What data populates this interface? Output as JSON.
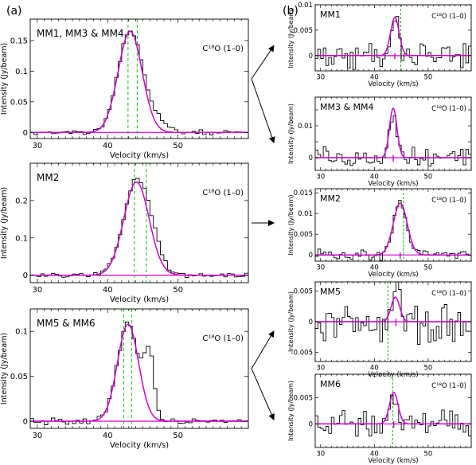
{
  "panel_labels": {
    "left": "(a)",
    "right": "(b)"
  },
  "colors": {
    "observed": "#000000",
    "fit": "#d000d0",
    "vlsr_marker": "#d000d0",
    "component_line": "#00c800"
  },
  "chart_data": [
    {
      "id": "a1",
      "type": "line",
      "column": "a",
      "region_label": "MM1, MM3 & MM4",
      "species_label": "C¹⁸O (1–0)",
      "xlabel": "Velocity (km/s)",
      "ylabel": "Intensity (Jy/beam)",
      "xlim": [
        29,
        60
      ],
      "ylim": [
        -0.01,
        0.185
      ],
      "xticks": [
        30,
        40,
        50
      ],
      "yticks": [
        0,
        0.05,
        0.1,
        0.15
      ],
      "xtick_labels": [
        "30",
        "40",
        "50"
      ],
      "ytick_labels": [
        "0",
        "0.05",
        "0.1",
        "0.15"
      ],
      "center": 43.2,
      "width": 1.7,
      "peak": 0.165,
      "noise": 0.003,
      "extra": [
        [
          46.6,
          1.6,
          0.02
        ]
      ],
      "vlines": [
        42.9,
        44.2
      ],
      "vlsr_marker": 43.8,
      "series": [
        {
          "role": "observed",
          "style": "histogram"
        },
        {
          "role": "gaussian-fit",
          "style": "smooth"
        }
      ]
    },
    {
      "id": "a2",
      "type": "line",
      "column": "a",
      "region_label": "MM2",
      "species_label": "C¹⁸O (1–0)",
      "xlabel": "Velocity (km/s)",
      "ylabel": "Intensity (Jy/beam)",
      "xlim": [
        29,
        60
      ],
      "ylim": [
        -0.02,
        0.3
      ],
      "xticks": [
        30,
        40,
        50
      ],
      "yticks": [
        0,
        0.1,
        0.2
      ],
      "xtick_labels": [
        "30",
        "40",
        "50"
      ],
      "ytick_labels": [
        "0",
        "0.1",
        "0.2"
      ],
      "center": 44.1,
      "width": 1.8,
      "peak": 0.25,
      "noise": 0.005,
      "extra": [
        [
          46.5,
          1.4,
          0.04
        ]
      ],
      "vlines": [
        43.8,
        45.5
      ],
      "vlsr_marker": 44.1,
      "series": [
        {
          "role": "observed",
          "style": "histogram"
        },
        {
          "role": "gaussian-fit",
          "style": "smooth"
        }
      ]
    },
    {
      "id": "a3",
      "type": "line",
      "column": "a",
      "region_label": "MM5 & MM6",
      "species_label": "C¹⁸O (1–0)",
      "xlabel": "Velocity (km/s)",
      "ylabel": "Intensity (Jy/beam)",
      "xlim": [
        29,
        60
      ],
      "ylim": [
        -0.008,
        0.125
      ],
      "xticks": [
        30,
        40,
        50
      ],
      "yticks": [
        0,
        0.05,
        0.1
      ],
      "xtick_labels": [
        "30",
        "40",
        "50"
      ],
      "ytick_labels": [
        "0",
        "0.05",
        "0.1"
      ],
      "center": 42.9,
      "width": 1.5,
      "peak": 0.108,
      "noise": 0.003,
      "extra": [
        [
          45.9,
          0.7,
          0.07
        ]
      ],
      "vlines": [
        42.3,
        43.4
      ],
      "vlsr_marker": 42.9,
      "series": [
        {
          "role": "observed",
          "style": "histogram"
        },
        {
          "role": "gaussian-fit",
          "style": "smooth"
        }
      ]
    },
    {
      "id": "b1",
      "type": "line",
      "column": "b",
      "region_label": "MM1",
      "species_label": "C¹⁸O (1–0)",
      "xlabel": "Velocity (km/s)",
      "ylabel": "Intensity (Jy/beam)",
      "xlim": [
        29,
        58
      ],
      "ylim": [
        -0.003,
        0.01
      ],
      "xticks": [
        30,
        40,
        50
      ],
      "yticks": [
        0,
        0.005,
        0.01
      ],
      "xtick_labels": [
        "30",
        "40",
        "50"
      ],
      "ytick_labels": [
        "0",
        "0.005",
        "0.01"
      ],
      "center": 43.8,
      "width": 0.8,
      "peak": 0.0075,
      "noise": 0.0022,
      "extra": [],
      "vlines": [
        44.9
      ],
      "vlsr_marker": 43.8,
      "series": [
        {
          "role": "observed",
          "style": "histogram"
        },
        {
          "role": "gaussian-fit",
          "style": "smooth"
        }
      ]
    },
    {
      "id": "b2",
      "type": "line",
      "column": "b",
      "region_label": "MM3 & MM4",
      "species_label": "C¹⁸O (1–0)",
      "xlabel": "Velocity (km/s)",
      "ylabel": "Intensity (Jy/beam)",
      "xlim": [
        29,
        58
      ],
      "ylim": [
        -0.004,
        0.019
      ],
      "xticks": [
        30,
        40,
        50
      ],
      "yticks": [
        0,
        0.005,
        0.01,
        0.015
      ],
      "xtick_labels": [
        "30",
        "40",
        "50"
      ],
      "ytick_labels": [
        "0",
        "",
        "0.01",
        ""
      ],
      "center": 43.5,
      "width": 0.7,
      "peak": 0.0155,
      "noise": 0.0028,
      "extra": [],
      "vlines": [],
      "vlsr_marker": 43.5,
      "series": [
        {
          "role": "observed",
          "style": "histogram"
        },
        {
          "role": "gaussian-fit",
          "style": "smooth"
        }
      ]
    },
    {
      "id": "b3",
      "type": "line",
      "column": "b",
      "region_label": "MM2",
      "species_label": "C¹⁸O (1–0)",
      "xlabel": "Velocity (km/s)",
      "ylabel": "Intensity (Jy/beam)",
      "xlim": [
        29,
        58
      ],
      "ylim": [
        -0.0015,
        0.016
      ],
      "xticks": [
        30,
        40,
        50
      ],
      "yticks": [
        0,
        0.005,
        0.01,
        0.015
      ],
      "xtick_labels": [
        "30",
        "40",
        "50"
      ],
      "ytick_labels": [
        "0",
        "0.005",
        "0.01",
        "0.015"
      ],
      "center": 44.8,
      "width": 1.3,
      "peak": 0.0125,
      "noise": 0.0011,
      "extra": [],
      "vlines": [
        45.4
      ],
      "vlsr_marker": 44.8,
      "series": [
        {
          "role": "observed",
          "style": "histogram"
        },
        {
          "role": "gaussian-fit",
          "style": "smooth"
        }
      ]
    },
    {
      "id": "b4",
      "type": "line",
      "column": "b",
      "region_label": "MM5",
      "species_label": "C¹⁸O (1–0)",
      "xlabel": "Velocity (km/s)",
      "ylabel": "Intensity (Jy/beam)",
      "xlim": [
        29,
        58
      ],
      "ylim": [
        -0.0065,
        0.0065
      ],
      "xticks": [
        30,
        40,
        50
      ],
      "yticks": [
        -0.005,
        0,
        0.005
      ],
      "xtick_labels": [
        "30",
        "40",
        "50"
      ],
      "ytick_labels": [
        "-0.005",
        "0",
        "0.005"
      ],
      "center": 43.9,
      "width": 0.8,
      "peak": 0.004,
      "noise": 0.0028,
      "extra": [],
      "vlines": [
        42.5
      ],
      "vlsr_marker": 44.0,
      "series": [
        {
          "role": "observed",
          "style": "histogram"
        },
        {
          "role": "gaussian-fit",
          "style": "smooth"
        }
      ]
    },
    {
      "id": "b5",
      "type": "line",
      "column": "b",
      "region_label": "MM6",
      "species_label": "C¹⁸O (1–0)",
      "xlabel": "Velocity (km/s)",
      "ylabel": "Intensity (Jy/beam)",
      "xlim": [
        29,
        58
      ],
      "ylim": [
        -0.0045,
        0.0095
      ],
      "xticks": [
        30,
        40,
        50
      ],
      "yticks": [
        0,
        0.005
      ],
      "xtick_labels": [
        "30",
        "40",
        "50"
      ],
      "ytick_labels": [
        "0",
        "0.005"
      ],
      "center": 43.6,
      "width": 0.8,
      "peak": 0.006,
      "noise": 0.0022,
      "extra": [],
      "vlines": [
        43.4
      ],
      "vlsr_marker": 43.6,
      "series": [
        {
          "role": "observed",
          "style": "histogram"
        },
        {
          "role": "gaussian-fit",
          "style": "smooth"
        }
      ]
    }
  ],
  "connectors": [
    {
      "from": "a1",
      "to": [
        "b1",
        "b2"
      ]
    },
    {
      "from": "a2",
      "to": [
        "b3"
      ]
    },
    {
      "from": "a3",
      "to": [
        "b4",
        "b5"
      ]
    }
  ]
}
